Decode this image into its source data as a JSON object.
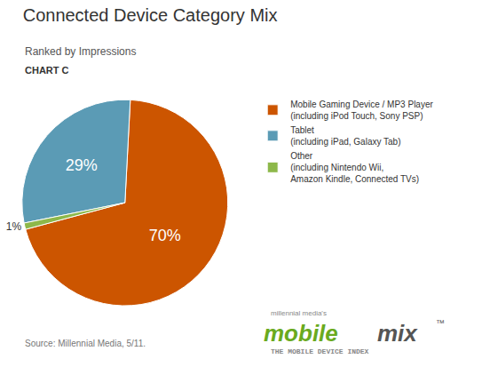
{
  "chart_data": {
    "type": "pie",
    "title": "Connected Device Category Mix",
    "subtitle": "Ranked by Impressions",
    "categories": [
      "Mobile Gaming Device / MP3 Player\n(including iPod Touch, Sony PSP)",
      "Tablet\n(including iPad, Galaxy Tab)",
      "Other\n(including Nintendo Wii,\nAmazon Kindle, Connected TVs)"
    ],
    "values": [
      70,
      29,
      1
    ],
    "value_labels": [
      "70%",
      "29%",
      "1%"
    ],
    "data_labels": true,
    "colors": [
      "#CC5500",
      "#5B9BB5",
      "#8DB84A"
    ],
    "legend": "right",
    "annotations": [
      "CHART C",
      "Source: Millennial Media, 5/11.",
      "millennial media's",
      "mobile",
      "mix",
      "™",
      "THE MOBILE DEVICE INDEX"
    ]
  }
}
